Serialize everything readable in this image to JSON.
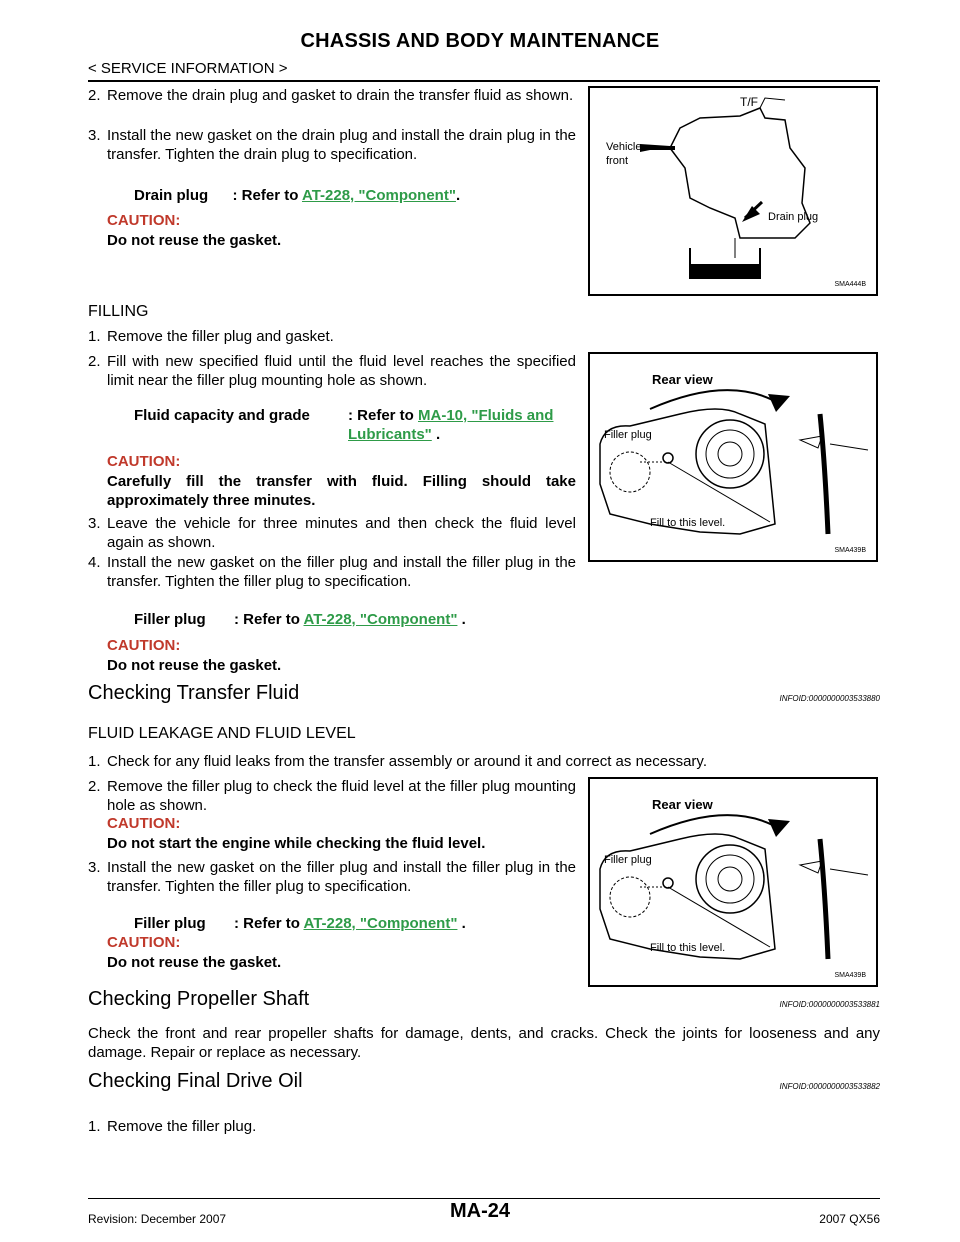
{
  "header": {
    "title": "CHASSIS AND BODY MAINTENANCE",
    "subtitle": "< SERVICE INFORMATION >"
  },
  "draining": {
    "step2": {
      "num": "2.",
      "text": "Remove the drain plug and gasket to drain the transfer fluid as shown."
    },
    "step3": {
      "num": "3.",
      "text": "Install the new gasket on the drain plug and install the drain plug in the transfer. Tighten the drain plug to specification."
    },
    "spec": {
      "label": "Drain plug",
      "sep": ": Refer to",
      "link": "AT-228, \"Component\"",
      "tail": "."
    },
    "caution_label": "CAUTION:",
    "caution_text": "Do not reuse the gasket."
  },
  "filling": {
    "heading": "FILLING",
    "step1": {
      "num": "1.",
      "text": "Remove the filler plug and gasket."
    },
    "step2": {
      "num": "2.",
      "text": "Fill with new specified fluid until the fluid level reaches the specified limit near the filler plug mounting hole as shown."
    },
    "spec": {
      "label": "Fluid capacity and grade",
      "sep": ": Refer to",
      "link": "MA-10, \"Fluids and Lubricants\"",
      "tail": "."
    },
    "caution1_label": "CAUTION:",
    "caution1_text": "Carefully fill the transfer with fluid. Filling should take approximately three minutes.",
    "step3": {
      "num": "3.",
      "text": "Leave the vehicle for three minutes and then check the fluid level again as shown."
    },
    "step4": {
      "num": "4.",
      "text": "Install the new gasket on the filler plug and install the filler plug in the transfer. Tighten the filler plug to specification."
    },
    "spec2": {
      "label": "Filler plug",
      "sep": ": Refer to",
      "link": "AT-228, \"Component\"",
      "tail": "."
    },
    "caution2_label": "CAUTION:",
    "caution2_text": "Do not reuse the gasket."
  },
  "checking_fluid": {
    "title": "Checking Transfer Fluid",
    "infoid": "INFOID:0000000003533880",
    "subheading": "FLUID LEAKAGE AND FLUID LEVEL",
    "step1": {
      "num": "1.",
      "text": "Check for any fluid leaks from the transfer assembly or around it and correct as necessary."
    },
    "step2": {
      "num": "2.",
      "text": "Remove the filler plug to check the fluid level at the filler plug mounting hole as shown."
    },
    "caution1_label": "CAUTION:",
    "caution1_text": "Do not start the engine while checking the fluid level.",
    "step3": {
      "num": "3.",
      "text": "Install the new gasket on the filler plug and install the filler plug in the transfer. Tighten the filler plug to specification."
    },
    "spec": {
      "label": "Filler plug",
      "sep": ": Refer to",
      "link": "AT-228, \"Component\"",
      "tail": "."
    },
    "caution2_label": "CAUTION:",
    "caution2_text": "Do not reuse the gasket."
  },
  "propeller": {
    "title": "Checking Propeller Shaft",
    "infoid": "INFOID:0000000003533881",
    "text": "Check the front and rear propeller shafts for damage, dents, and cracks. Check the joints for looseness and any damage. Repair or replace as necessary."
  },
  "final_drive": {
    "title": "Checking Final Drive Oil",
    "infoid": "INFOID:0000000003533882",
    "step1": {
      "num": "1.",
      "text": "Remove the filler plug."
    }
  },
  "figures": {
    "fig1": {
      "code": "SMA444B",
      "label_tf": "T/F",
      "label_vehicle": "Vehicle",
      "label_front": "front",
      "label_drain": "Drain plug"
    },
    "fig2": {
      "code": "SMA439B",
      "label_rear": "Rear view",
      "label_filler": "Filler plug",
      "label_fill": "Fill to this level."
    },
    "fig3": {
      "code": "SMA439B",
      "label_rear": "Rear view",
      "label_filler": "Filler plug",
      "label_fill": "Fill to this level."
    }
  },
  "footer": {
    "page": "MA-24",
    "revision": "Revision: December 2007",
    "model": "2007 QX56"
  }
}
